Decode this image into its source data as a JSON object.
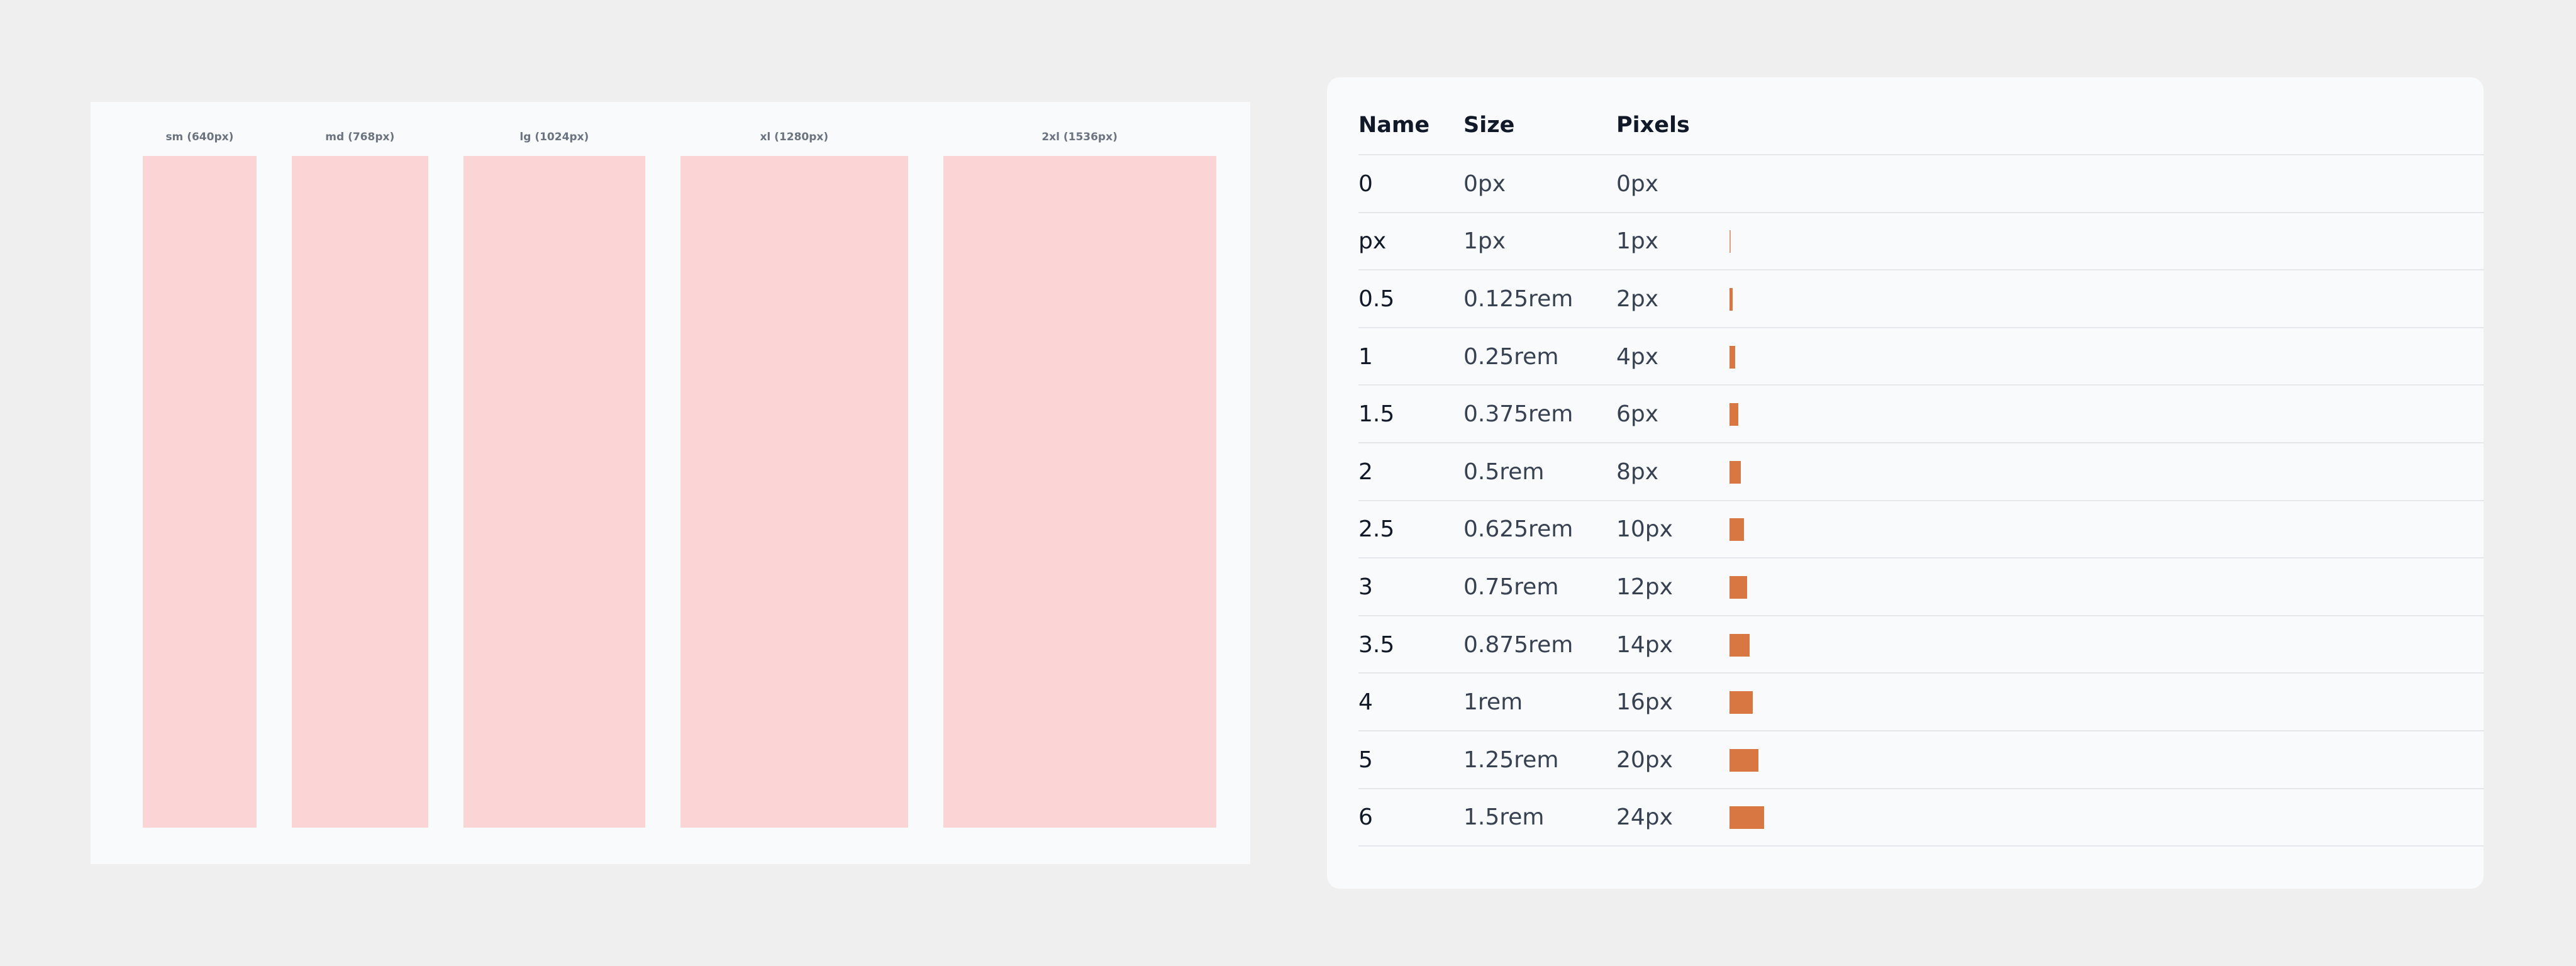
{
  "breakpoints": [
    "sm (640px)",
    "md (768px)",
    "lg (1024px)",
    "xl (1280px)",
    "2xl (1536px)"
  ],
  "table": {
    "headers": [
      "Name",
      "Size",
      "Pixels"
    ],
    "rows": [
      [
        "0",
        "0px",
        "0px"
      ],
      [
        "px",
        "1px",
        "1px"
      ],
      [
        "0.5",
        "0.125rem",
        "2px"
      ],
      [
        "1",
        "0.25rem",
        "4px"
      ],
      [
        "1.5",
        "0.375rem",
        "6px"
      ],
      [
        "2",
        "0.5rem",
        "8px"
      ],
      [
        "2.5",
        "0.625rem",
        "10px"
      ],
      [
        "3",
        "0.75rem",
        "12px"
      ],
      [
        "3.5",
        "0.875rem",
        "14px"
      ],
      [
        "4",
        "1rem",
        "16px"
      ],
      [
        "5",
        "1.25rem",
        "20px"
      ],
      [
        "6",
        "1.5rem",
        "24px"
      ]
    ]
  }
}
